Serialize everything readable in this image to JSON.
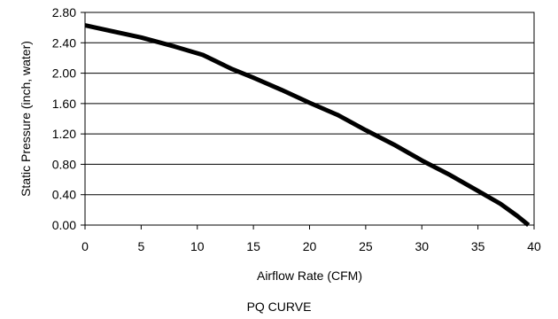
{
  "chart_data": {
    "type": "line",
    "title": "PQ CURVE",
    "xlabel": "Airflow Rate (CFM)",
    "ylabel": "Static Pressure (inch, water)",
    "xlim": [
      0,
      40
    ],
    "ylim": [
      0,
      2.8
    ],
    "x_ticks": [
      "0",
      "5",
      "10",
      "15",
      "20",
      "25",
      "30",
      "35",
      "40"
    ],
    "y_ticks": [
      "0.00",
      "0.40",
      "0.80",
      "1.20",
      "1.60",
      "2.00",
      "2.40",
      "2.80"
    ],
    "grid": "horizontal",
    "series": [
      {
        "color": "#000000",
        "x": [
          0,
          5,
          8,
          10.5,
          13,
          15,
          17.5,
          20,
          22.5,
          25,
          27.5,
          30,
          32.5,
          35,
          37,
          38.5,
          39.5
        ],
        "y": [
          2.63,
          2.47,
          2.35,
          2.24,
          2.06,
          1.94,
          1.78,
          1.61,
          1.45,
          1.25,
          1.06,
          0.85,
          0.66,
          0.45,
          0.28,
          0.12,
          0.0
        ]
      }
    ]
  }
}
